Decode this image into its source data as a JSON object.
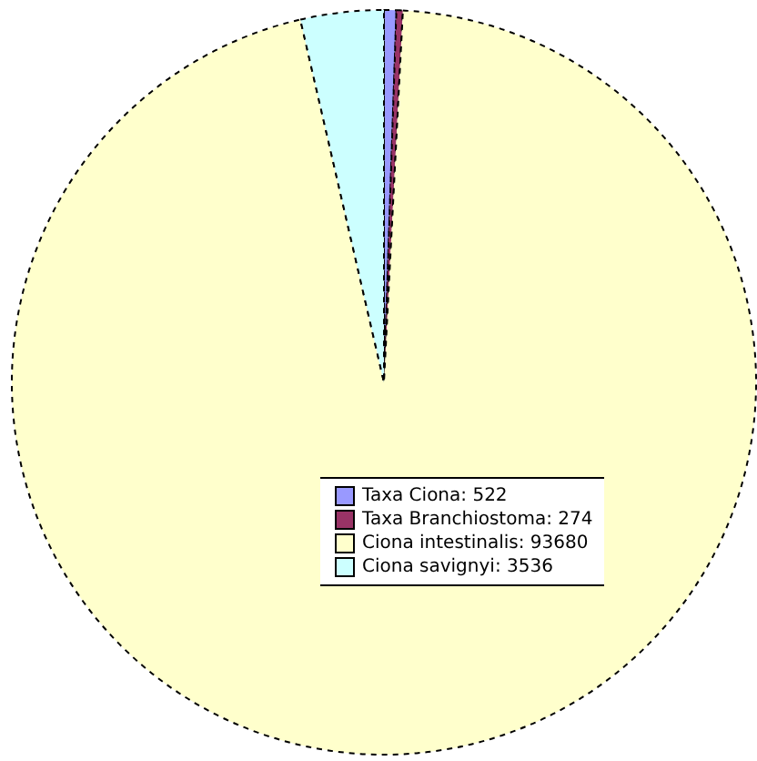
{
  "chart_data": {
    "type": "pie",
    "categories": [
      "Taxa Ciona",
      "Taxa Branchiostoma",
      "Ciona intestinalis",
      "Ciona savignyi"
    ],
    "values": [
      522,
      274,
      93680,
      3536
    ],
    "value_labels": [
      ": 522",
      ": 274",
      ": 93680",
      ": 3536"
    ],
    "colors": [
      "#9999ff",
      "#993366",
      "#ffffcc",
      "#ccffff"
    ],
    "legend": "bottom right"
  }
}
